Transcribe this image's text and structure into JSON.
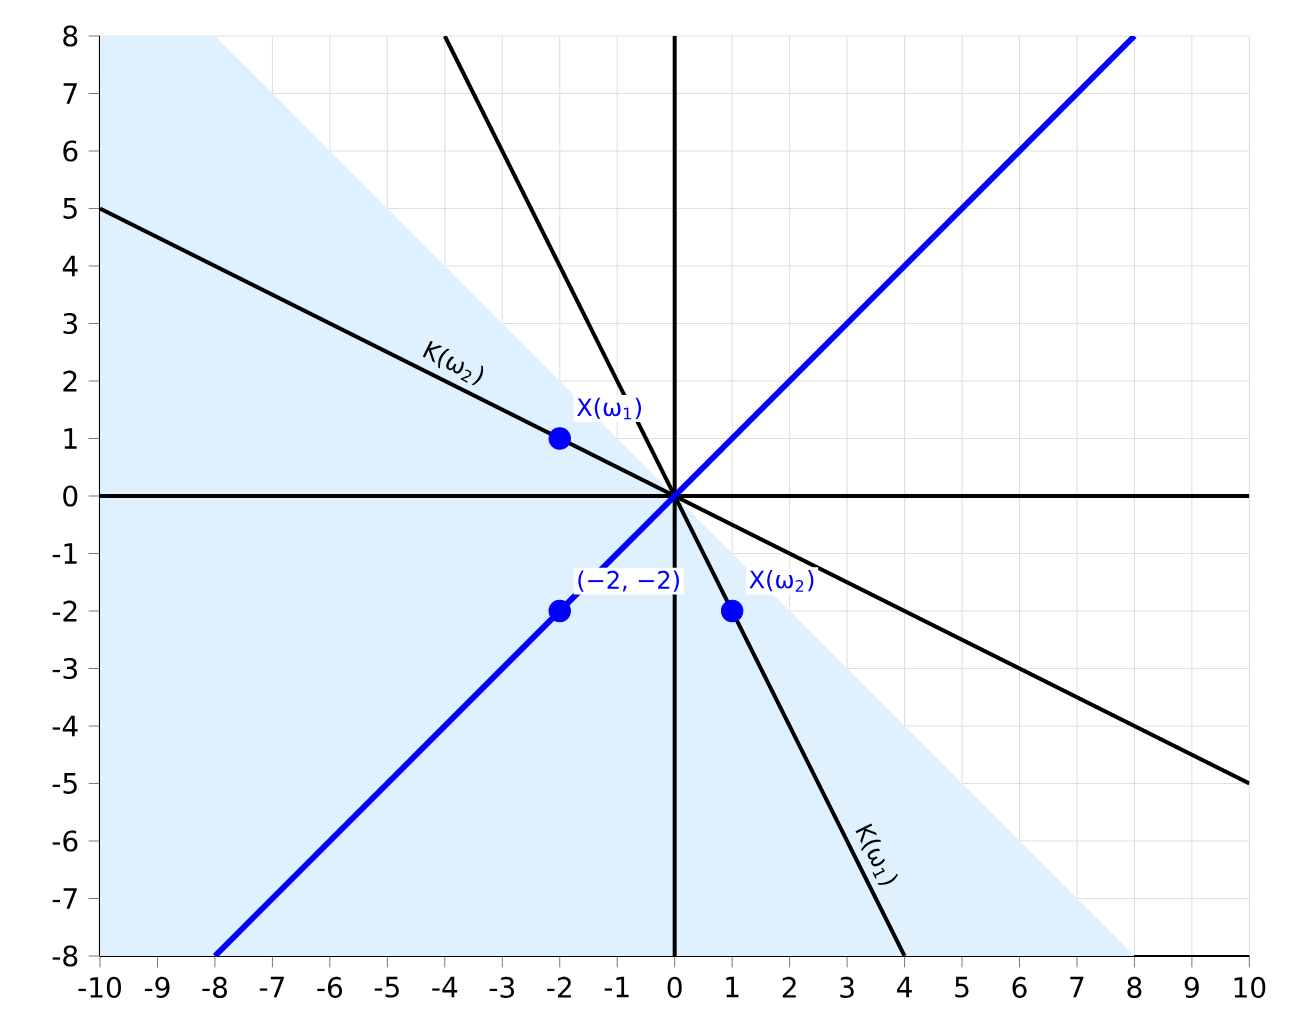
{
  "chart_data": {
    "type": "line",
    "xlim": [
      -10,
      10
    ],
    "ylim": [
      -8,
      8
    ],
    "xticks": [
      -10,
      -9,
      -8,
      -7,
      -6,
      -5,
      -4,
      -3,
      -2,
      -1,
      0,
      1,
      2,
      3,
      4,
      5,
      6,
      7,
      8,
      9,
      10
    ],
    "yticks": [
      -8,
      -7,
      -6,
      -5,
      -4,
      -3,
      -2,
      -1,
      0,
      1,
      2,
      3,
      4,
      5,
      6,
      7,
      8
    ],
    "grid": true,
    "series": [
      {
        "type": "area",
        "color": "#dff1fe",
        "x": [
          -10,
          -10,
          -8,
          8
        ],
        "values": [
          -8,
          8,
          8,
          -8
        ]
      },
      {
        "color": "#000000",
        "x": [
          0,
          0
        ],
        "values": [
          -8,
          8
        ]
      },
      {
        "color": "#000000",
        "x": [
          -10,
          10
        ],
        "values": [
          0,
          0
        ]
      },
      {
        "color": "#000000",
        "x": [
          -10,
          10
        ],
        "values": [
          5,
          -5
        ]
      },
      {
        "color": "#000000",
        "x": [
          -4,
          4
        ],
        "values": [
          8,
          -8
        ]
      },
      {
        "color": "#0000ff",
        "x": [
          -8,
          8
        ],
        "values": [
          -8,
          8
        ]
      },
      {
        "type": "scatter",
        "color": "#0000ff",
        "x": [
          -2,
          1,
          -2
        ],
        "values": [
          1,
          -2,
          -2
        ]
      }
    ],
    "annotations": [
      {
        "text": "X(ω$_{1}$)",
        "x": -2,
        "y": 1
      },
      {
        "text": "X(ω$_{2}$)",
        "x": 1,
        "y": -2
      },
      {
        "text": "(−2, −2)",
        "x": -2,
        "y": -2
      },
      {
        "text": "K(ω$_{2}$)",
        "x": -4,
        "y": 2
      },
      {
        "text": "K(ω$_{1}$)",
        "x": 3.2,
        "y": -6.4
      }
    ]
  }
}
